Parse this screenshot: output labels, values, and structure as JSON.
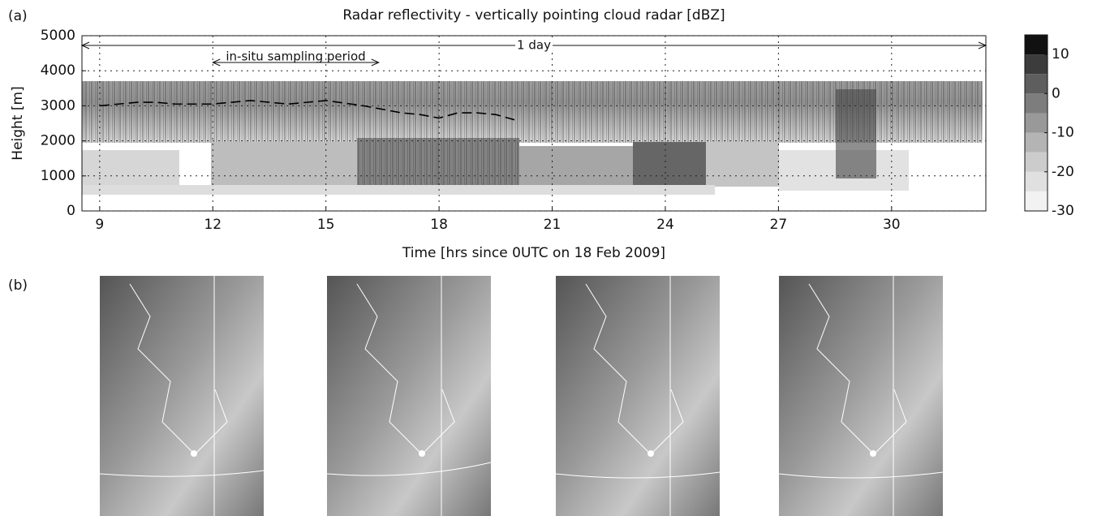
{
  "chart_data": {
    "type": "line",
    "title": "Radar reflectivity - vertically pointing cloud radar [dBZ]",
    "panel_labels": [
      "(a)",
      "(b)"
    ],
    "xlabel": "Time [hrs since 0UTC on 18 Feb 2009]",
    "ylabel": "Height [m]",
    "xlim": [
      8.53,
      32.5
    ],
    "ylim": [
      0,
      5000
    ],
    "xticks": [
      9,
      12,
      15,
      18,
      21,
      24,
      27,
      30
    ],
    "yticks": [
      0,
      1000,
      2000,
      3000,
      4000,
      5000
    ],
    "grid": true,
    "series": [
      {
        "color": "#000000",
        "x": [
          9,
          9.5,
          10,
          10.5,
          11,
          12,
          13,
          14,
          15,
          16,
          17,
          17.5,
          18,
          18.5,
          19,
          19.5,
          20
        ],
        "values": [
          3000,
          3050,
          3100,
          3100,
          3050,
          3050,
          3150,
          3050,
          3150,
          3000,
          2800,
          2750,
          2650,
          2800,
          2800,
          2750,
          2600
        ]
      }
    ],
    "annotations": [
      {
        "text": "1 day",
        "x": [
          8.53,
          32.5
        ]
      },
      {
        "text": "in-situ sampling period",
        "x": [
          12,
          16.4
        ]
      }
    ],
    "colorbar": {
      "clim": [
        -30,
        15
      ],
      "ticks": [
        -30,
        -20,
        -10,
        0,
        10
      ],
      "colors": [
        "#f2f2f2",
        "#e0e0e0",
        "#cccccc",
        "#b4b4b4",
        "#999999",
        "#7d7d7d",
        "#5e5e5e",
        "#3c3c3c",
        "#111111"
      ]
    }
  }
}
